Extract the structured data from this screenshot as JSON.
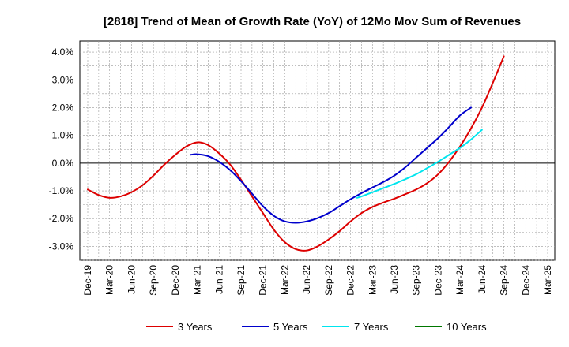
{
  "chart_data": {
    "type": "line",
    "title": "[2818]  Trend of Mean of Growth Rate (YoY) of 12Mo Mov Sum of Revenues",
    "xlabel": "",
    "ylabel": "",
    "x_ticks": [
      "Dec-19",
      "Mar-20",
      "Jun-20",
      "Sep-20",
      "Dec-20",
      "Mar-21",
      "Jun-21",
      "Sep-21",
      "Dec-21",
      "Mar-22",
      "Jun-22",
      "Sep-22",
      "Dec-22",
      "Mar-23",
      "Jun-23",
      "Sep-23",
      "Dec-23",
      "Mar-24",
      "Jun-24",
      "Sep-24",
      "Dec-24",
      "Mar-25"
    ],
    "y_ticks": [
      "4.0%",
      "3.0%",
      "2.0%",
      "1.0%",
      "0.0%",
      "-1.0%",
      "-2.0%",
      "-3.0%"
    ],
    "y_tick_values": [
      4.0,
      3.0,
      2.0,
      1.0,
      0.0,
      -1.0,
      -2.0,
      -3.0
    ],
    "ylim": [
      -3.5,
      4.4
    ],
    "xlim": [
      0,
      21
    ],
    "grid": true,
    "legend_position": "bottom",
    "series": [
      {
        "name": "3 Years",
        "color": "#dd0000",
        "x": [
          0,
          0.5,
          1,
          1.5,
          2,
          2.5,
          3,
          3.5,
          4,
          4.5,
          5,
          5.5,
          6,
          6.5,
          7,
          7.5,
          8,
          8.5,
          9,
          9.5,
          10,
          10.5,
          11,
          11.5,
          12,
          12.5,
          13,
          13.5,
          14,
          14.5,
          15,
          15.5,
          16,
          16.5,
          17,
          17.5,
          18,
          18.5,
          19,
          19.5,
          20
        ],
        "values": [
          -0.95,
          -1.15,
          -1.25,
          -1.2,
          -1.05,
          -0.8,
          -0.45,
          -0.05,
          0.3,
          0.6,
          0.75,
          0.65,
          0.35,
          -0.05,
          -0.6,
          -1.2,
          -1.8,
          -2.4,
          -2.85,
          -3.1,
          -3.15,
          -3.0,
          -2.75,
          -2.45,
          -2.1,
          -1.8,
          -1.58,
          -1.42,
          -1.28,
          -1.12,
          -0.95,
          -0.72,
          -0.4,
          0.05,
          0.6,
          1.25,
          2.0,
          2.9,
          3.85,
          null,
          null
        ]
      },
      {
        "name": "5 Years",
        "color": "#0000cc",
        "x": [
          4.7,
          5,
          5.5,
          6,
          6.5,
          7,
          7.5,
          8,
          8.5,
          9,
          9.5,
          10,
          10.5,
          11,
          11.5,
          12,
          12.5,
          13,
          13.5,
          14,
          14.5,
          15,
          15.5,
          16,
          16.5,
          17,
          17.5,
          18,
          18.5,
          19,
          19.5,
          20
        ],
        "values": [
          0.3,
          0.32,
          0.25,
          0.05,
          -0.25,
          -0.65,
          -1.1,
          -1.55,
          -1.9,
          -2.1,
          -2.15,
          -2.1,
          -1.98,
          -1.8,
          -1.55,
          -1.3,
          -1.08,
          -0.88,
          -0.68,
          -0.45,
          -0.15,
          0.2,
          0.55,
          0.9,
          1.3,
          1.72,
          2.0,
          null,
          null,
          null,
          null,
          null
        ]
      },
      {
        "name": "7 Years",
        "color": "#00e5ee",
        "x": [
          12.3,
          12.5,
          13,
          13.5,
          14,
          14.5,
          15,
          15.5,
          16,
          16.5,
          17,
          17.5,
          18,
          18.5,
          19,
          19.5,
          20
        ],
        "values": [
          -1.25,
          -1.2,
          -1.05,
          -0.9,
          -0.75,
          -0.58,
          -0.4,
          -0.18,
          0.05,
          0.3,
          0.55,
          0.85,
          1.2,
          null,
          null,
          null,
          null
        ]
      },
      {
        "name": "10 Years",
        "color": "#007700",
        "x": [],
        "values": []
      }
    ]
  }
}
